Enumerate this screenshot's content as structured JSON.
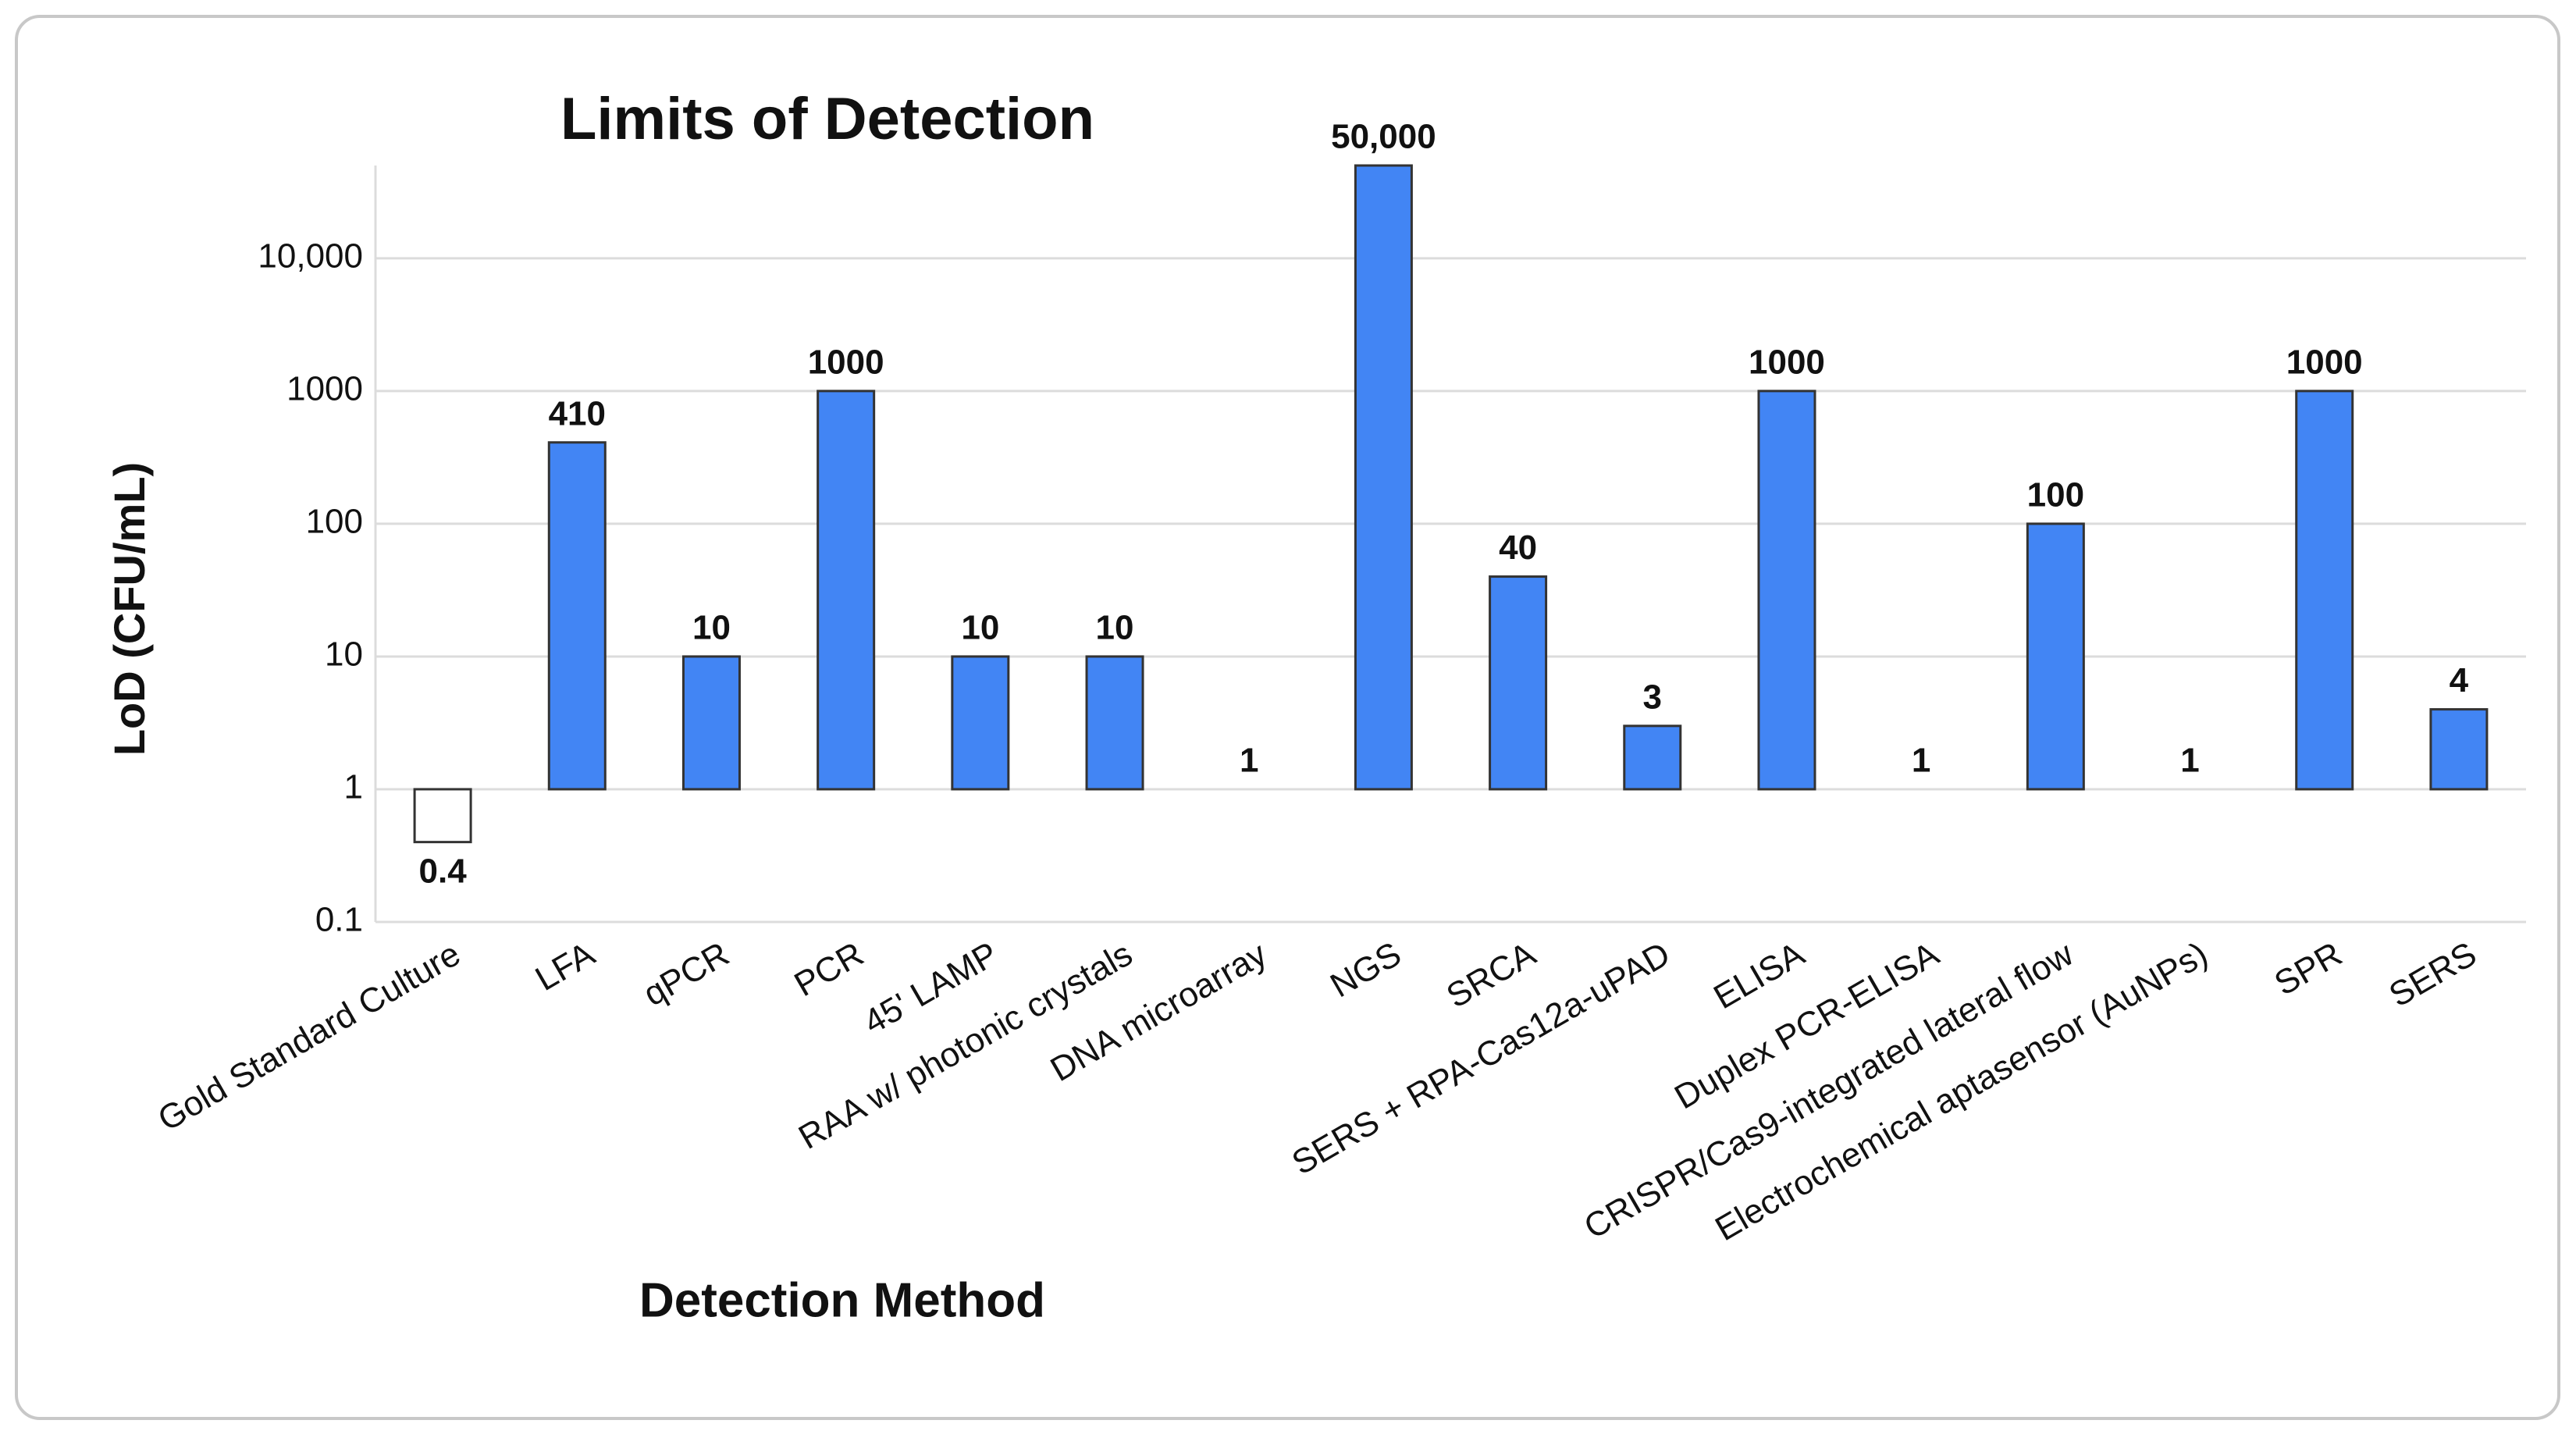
{
  "chart_data": {
    "type": "bar",
    "title": "Limits of Detection",
    "x_label": "Detection Method",
    "y_label": "LoD (CFU/mL)",
    "categories": [
      "Gold Standard Culture",
      "LFA",
      "qPCR",
      "PCR",
      "45' LAMP",
      "RAA w/ photonic crystals",
      "DNA microarray",
      "NGS",
      "SRCA",
      "SERS + RPA-Cas12a-uPAD",
      "ELISA",
      "Duplex PCR-ELISA",
      "CRISPR/Cas9-integrated lateral flow",
      "Electrochemical aptasensor (AuNPs)",
      "SPR",
      "SERS"
    ],
    "values": [
      0.4,
      410,
      10,
      1000,
      10,
      10,
      1,
      50000,
      40,
      3,
      1000,
      1,
      100,
      1,
      1000,
      4
    ],
    "value_labels": [
      "0.4",
      "410",
      "10",
      "1000",
      "10",
      "10",
      "1",
      "50,000",
      "40",
      "3",
      "1000",
      "1",
      "100",
      "1",
      "1000",
      "4"
    ],
    "colors": [
      "#ffffff",
      "#4285f4",
      "#4285f4",
      "#4285f4",
      "#4285f4",
      "#4285f4",
      "#4285f4",
      "#4285f4",
      "#4285f4",
      "#4285f4",
      "#4285f4",
      "#4285f4",
      "#4285f4",
      "#4285f4",
      "#4285f4",
      "#4285f4"
    ],
    "log_scale": true,
    "ylim": [
      0.1,
      50000
    ],
    "yticks": [
      0.1,
      1,
      10,
      100,
      1000,
      {
        "value": 10000,
        "label": "10,000"
      }
    ],
    "grid": true
  }
}
